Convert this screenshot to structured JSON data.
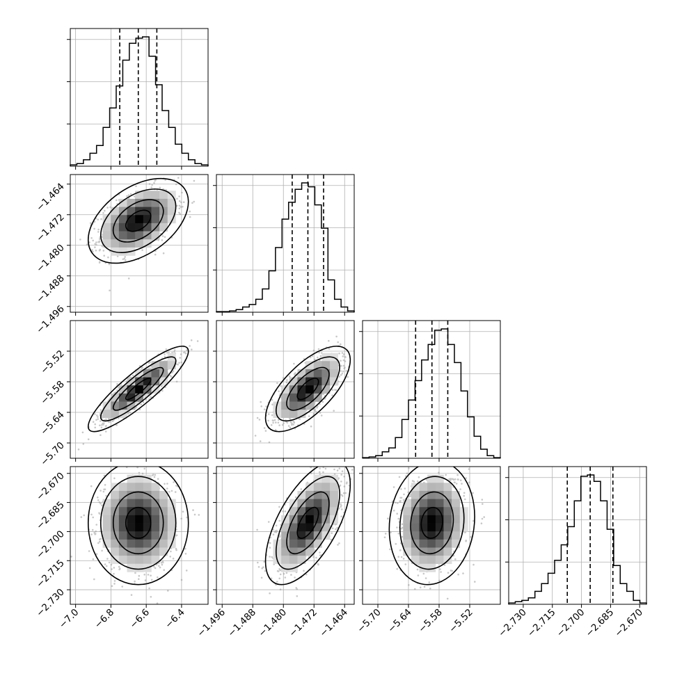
{
  "chart_data": {
    "type": "corner",
    "title": "",
    "parameters": [
      {
        "label": "",
        "limits": [
          -7.03,
          -6.25
        ],
        "ticks": [
          "−7.0",
          "−6.8",
          "−6.6",
          "−6.4"
        ],
        "tick_values": [
          -7.0,
          -6.8,
          -6.6,
          -6.4
        ],
        "quantiles": [
          -6.75,
          -6.645,
          -6.54
        ],
        "hist": [
          0.01,
          0.02,
          0.05,
          0.1,
          0.16,
          0.3,
          0.45,
          0.62,
          0.82,
          0.95,
          0.99,
          1.0,
          0.85,
          0.63,
          0.43,
          0.3,
          0.17,
          0.1,
          0.05,
          0.02,
          0.01
        ]
      },
      {
        "label": "",
        "limits": [
          -1.4975,
          -1.4615
        ],
        "ticks": [
          "−1.496",
          "−1.488",
          "−1.480",
          "−1.472",
          "−1.464"
        ],
        "tick_values": [
          -1.496,
          -1.488,
          -1.48,
          -1.472,
          -1.464
        ],
        "quantiles": [
          -1.4777,
          -1.4736,
          -1.4695
        ],
        "hist": [
          0.005,
          0.005,
          0.01,
          0.02,
          0.04,
          0.06,
          0.1,
          0.18,
          0.32,
          0.5,
          0.72,
          0.85,
          0.95,
          1.0,
          0.97,
          0.83,
          0.65,
          0.25,
          0.1,
          0.04,
          0.01
        ]
      },
      {
        "label": "",
        "limits": [
          -5.73,
          -5.46
        ],
        "ticks": [
          "−5.70",
          "−5.64",
          "−5.58",
          "−5.52"
        ],
        "tick_values": [
          -5.7,
          -5.64,
          -5.58,
          -5.52
        ],
        "quantiles": [
          -5.626,
          -5.594,
          -5.563
        ],
        "hist": [
          0.005,
          0.01,
          0.02,
          0.05,
          0.08,
          0.16,
          0.3,
          0.45,
          0.6,
          0.76,
          0.88,
          0.99,
          1.0,
          0.88,
          0.74,
          0.52,
          0.32,
          0.17,
          0.07,
          0.02,
          0.005
        ]
      },
      {
        "label": "",
        "limits": [
          -2.7375,
          -2.6665
        ],
        "ticks": [
          "−2.730",
          "−2.715",
          "−2.700",
          "−2.685",
          "−2.670"
        ],
        "tick_values": [
          -2.73,
          -2.715,
          -2.7,
          -2.685,
          -2.67
        ],
        "quantiles": [
          -2.7073,
          -2.6955,
          -2.6838
        ],
        "hist": [
          0.01,
          0.02,
          0.03,
          0.05,
          0.1,
          0.16,
          0.24,
          0.34,
          0.46,
          0.6,
          0.8,
          0.99,
          1.0,
          0.95,
          0.8,
          0.58,
          0.3,
          0.16,
          0.1,
          0.03,
          0.01
        ]
      }
    ],
    "samples": {
      "means": [
        -6.645,
        -1.4736,
        -5.594,
        -2.6955
      ],
      "sigmas": [
        0.105,
        0.0041,
        0.031,
        0.0118
      ],
      "correlations": [
        [
          1.0,
          0.45,
          0.88,
          0.0
        ],
        [
          0.45,
          1.0,
          0.68,
          0.62
        ],
        [
          0.88,
          0.68,
          1.0,
          0.1
        ],
        [
          0.0,
          0.62,
          0.1,
          1.0
        ]
      ]
    },
    "quantile_levels": [
      0.16,
      0.5,
      0.84
    ],
    "contour_levels_sigma": [
      0.5,
      1.0,
      1.5,
      2.0
    ],
    "grid": true,
    "colors": {
      "line": "#000000",
      "points": "#9a9a9a",
      "grid": "#b0b0b0"
    }
  }
}
